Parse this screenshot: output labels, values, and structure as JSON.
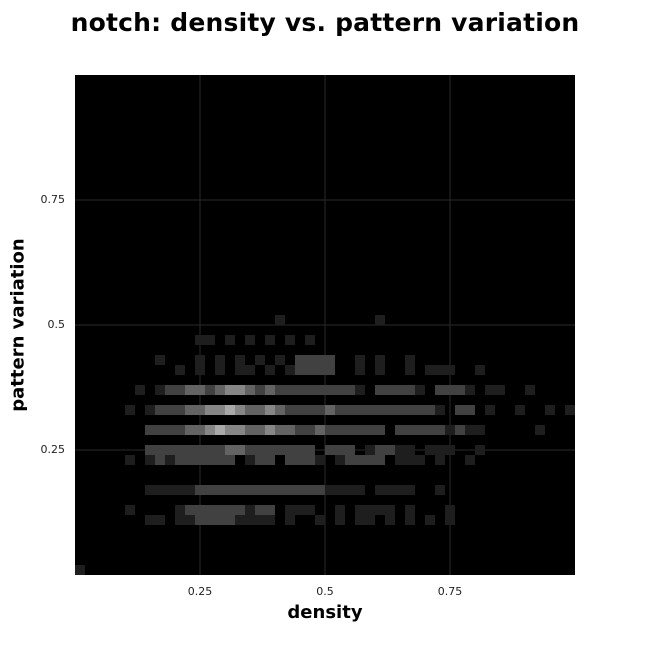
{
  "chart_data": {
    "type": "heatmap",
    "title": "notch: density vs. pattern variation",
    "xlabel": "density",
    "ylabel": "pattern variation",
    "xlim": [
      0,
      1
    ],
    "ylim": [
      0,
      1
    ],
    "bin_size": 0.02,
    "xticks": [
      {
        "value": 0.25,
        "label": "0.25"
      },
      {
        "value": 0.5,
        "label": "0.5"
      },
      {
        "value": 0.75,
        "label": "0.75"
      }
    ],
    "yticks": [
      {
        "value": 0.25,
        "label": "0.25"
      },
      {
        "value": 0.5,
        "label": "0.5"
      },
      {
        "value": 0.75,
        "label": "0.75"
      }
    ],
    "grid": true,
    "colors": {
      "background": "#000000",
      "grid": "#2a2a2a",
      "cell_min": "#1e1e1e",
      "cell_max": "#a8a8a8"
    },
    "cells": [
      [
        0.0,
        0.0,
        2
      ],
      [
        0.4,
        0.5,
        2
      ],
      [
        0.6,
        0.5,
        2
      ],
      [
        0.24,
        0.46,
        2
      ],
      [
        0.26,
        0.46,
        2
      ],
      [
        0.3,
        0.46,
        2
      ],
      [
        0.34,
        0.46,
        2
      ],
      [
        0.38,
        0.46,
        2
      ],
      [
        0.42,
        0.46,
        2
      ],
      [
        0.46,
        0.46,
        2
      ],
      [
        0.16,
        0.42,
        2
      ],
      [
        0.24,
        0.42,
        2
      ],
      [
        0.28,
        0.42,
        2
      ],
      [
        0.32,
        0.42,
        2
      ],
      [
        0.36,
        0.42,
        2
      ],
      [
        0.4,
        0.42,
        2
      ],
      [
        0.44,
        0.42,
        3
      ],
      [
        0.46,
        0.42,
        3
      ],
      [
        0.48,
        0.42,
        3
      ],
      [
        0.5,
        0.42,
        3
      ],
      [
        0.56,
        0.42,
        2
      ],
      [
        0.6,
        0.42,
        2
      ],
      [
        0.66,
        0.42,
        2
      ],
      [
        0.2,
        0.4,
        2
      ],
      [
        0.24,
        0.4,
        2
      ],
      [
        0.28,
        0.4,
        2
      ],
      [
        0.32,
        0.4,
        2
      ],
      [
        0.34,
        0.4,
        2
      ],
      [
        0.38,
        0.4,
        2
      ],
      [
        0.42,
        0.4,
        2
      ],
      [
        0.44,
        0.4,
        3
      ],
      [
        0.46,
        0.4,
        3
      ],
      [
        0.48,
        0.4,
        3
      ],
      [
        0.5,
        0.4,
        3
      ],
      [
        0.56,
        0.4,
        2
      ],
      [
        0.6,
        0.4,
        2
      ],
      [
        0.66,
        0.4,
        2
      ],
      [
        0.7,
        0.4,
        2
      ],
      [
        0.72,
        0.4,
        2
      ],
      [
        0.74,
        0.4,
        2
      ],
      [
        0.8,
        0.4,
        2
      ],
      [
        0.12,
        0.36,
        2
      ],
      [
        0.16,
        0.36,
        2
      ],
      [
        0.18,
        0.36,
        3
      ],
      [
        0.2,
        0.36,
        3
      ],
      [
        0.22,
        0.36,
        4
      ],
      [
        0.24,
        0.36,
        4
      ],
      [
        0.26,
        0.36,
        3
      ],
      [
        0.28,
        0.36,
        4
      ],
      [
        0.3,
        0.36,
        5
      ],
      [
        0.32,
        0.36,
        5
      ],
      [
        0.34,
        0.36,
        4
      ],
      [
        0.36,
        0.36,
        3
      ],
      [
        0.38,
        0.36,
        4
      ],
      [
        0.4,
        0.36,
        3
      ],
      [
        0.42,
        0.36,
        3
      ],
      [
        0.44,
        0.36,
        3
      ],
      [
        0.46,
        0.36,
        3
      ],
      [
        0.48,
        0.36,
        3
      ],
      [
        0.5,
        0.36,
        3
      ],
      [
        0.52,
        0.36,
        3
      ],
      [
        0.54,
        0.36,
        3
      ],
      [
        0.56,
        0.36,
        2
      ],
      [
        0.6,
        0.36,
        3
      ],
      [
        0.62,
        0.36,
        3
      ],
      [
        0.64,
        0.36,
        3
      ],
      [
        0.66,
        0.36,
        3
      ],
      [
        0.68,
        0.36,
        2
      ],
      [
        0.72,
        0.36,
        3
      ],
      [
        0.74,
        0.36,
        3
      ],
      [
        0.76,
        0.36,
        3
      ],
      [
        0.78,
        0.36,
        2
      ],
      [
        0.82,
        0.36,
        2
      ],
      [
        0.84,
        0.36,
        2
      ],
      [
        0.9,
        0.36,
        2
      ],
      [
        0.1,
        0.32,
        2
      ],
      [
        0.14,
        0.32,
        2
      ],
      [
        0.16,
        0.32,
        3
      ],
      [
        0.18,
        0.32,
        3
      ],
      [
        0.2,
        0.32,
        3
      ],
      [
        0.22,
        0.32,
        4
      ],
      [
        0.24,
        0.32,
        4
      ],
      [
        0.26,
        0.32,
        5
      ],
      [
        0.28,
        0.32,
        5
      ],
      [
        0.3,
        0.32,
        6
      ],
      [
        0.32,
        0.32,
        5
      ],
      [
        0.34,
        0.32,
        4
      ],
      [
        0.36,
        0.32,
        4
      ],
      [
        0.38,
        0.32,
        5
      ],
      [
        0.4,
        0.32,
        4
      ],
      [
        0.42,
        0.32,
        3
      ],
      [
        0.44,
        0.32,
        3
      ],
      [
        0.46,
        0.32,
        3
      ],
      [
        0.48,
        0.32,
        3
      ],
      [
        0.5,
        0.32,
        4
      ],
      [
        0.52,
        0.32,
        3
      ],
      [
        0.54,
        0.32,
        3
      ],
      [
        0.56,
        0.32,
        3
      ],
      [
        0.58,
        0.32,
        3
      ],
      [
        0.6,
        0.32,
        3
      ],
      [
        0.62,
        0.32,
        3
      ],
      [
        0.64,
        0.32,
        3
      ],
      [
        0.66,
        0.32,
        3
      ],
      [
        0.68,
        0.32,
        3
      ],
      [
        0.7,
        0.32,
        3
      ],
      [
        0.72,
        0.32,
        2
      ],
      [
        0.76,
        0.32,
        3
      ],
      [
        0.78,
        0.32,
        3
      ],
      [
        0.82,
        0.32,
        2
      ],
      [
        0.88,
        0.32,
        2
      ],
      [
        0.94,
        0.32,
        2
      ],
      [
        0.98,
        0.32,
        2
      ],
      [
        0.14,
        0.28,
        3
      ],
      [
        0.16,
        0.28,
        3
      ],
      [
        0.18,
        0.28,
        3
      ],
      [
        0.2,
        0.28,
        3
      ],
      [
        0.22,
        0.28,
        4
      ],
      [
        0.24,
        0.28,
        4
      ],
      [
        0.26,
        0.28,
        5
      ],
      [
        0.28,
        0.28,
        6
      ],
      [
        0.3,
        0.28,
        5
      ],
      [
        0.32,
        0.28,
        5
      ],
      [
        0.34,
        0.28,
        4
      ],
      [
        0.36,
        0.28,
        4
      ],
      [
        0.38,
        0.28,
        5
      ],
      [
        0.4,
        0.28,
        4
      ],
      [
        0.42,
        0.28,
        4
      ],
      [
        0.44,
        0.28,
        3
      ],
      [
        0.46,
        0.28,
        3
      ],
      [
        0.48,
        0.28,
        4
      ],
      [
        0.5,
        0.28,
        3
      ],
      [
        0.52,
        0.28,
        3
      ],
      [
        0.54,
        0.28,
        3
      ],
      [
        0.56,
        0.28,
        3
      ],
      [
        0.58,
        0.28,
        3
      ],
      [
        0.6,
        0.28,
        3
      ],
      [
        0.64,
        0.28,
        3
      ],
      [
        0.66,
        0.28,
        3
      ],
      [
        0.68,
        0.28,
        3
      ],
      [
        0.7,
        0.28,
        3
      ],
      [
        0.72,
        0.28,
        3
      ],
      [
        0.74,
        0.28,
        2
      ],
      [
        0.76,
        0.28,
        3
      ],
      [
        0.78,
        0.28,
        2
      ],
      [
        0.8,
        0.28,
        2
      ],
      [
        0.92,
        0.28,
        2
      ],
      [
        0.14,
        0.24,
        3
      ],
      [
        0.16,
        0.24,
        3
      ],
      [
        0.18,
        0.24,
        3
      ],
      [
        0.2,
        0.24,
        3
      ],
      [
        0.22,
        0.24,
        3
      ],
      [
        0.24,
        0.24,
        3
      ],
      [
        0.26,
        0.24,
        3
      ],
      [
        0.28,
        0.24,
        3
      ],
      [
        0.3,
        0.24,
        4
      ],
      [
        0.32,
        0.24,
        4
      ],
      [
        0.34,
        0.24,
        3
      ],
      [
        0.36,
        0.24,
        3
      ],
      [
        0.38,
        0.24,
        3
      ],
      [
        0.4,
        0.24,
        3
      ],
      [
        0.42,
        0.24,
        3
      ],
      [
        0.44,
        0.24,
        3
      ],
      [
        0.46,
        0.24,
        3
      ],
      [
        0.5,
        0.24,
        3
      ],
      [
        0.52,
        0.24,
        3
      ],
      [
        0.54,
        0.24,
        3
      ],
      [
        0.58,
        0.24,
        2
      ],
      [
        0.6,
        0.24,
        3
      ],
      [
        0.62,
        0.24,
        3
      ],
      [
        0.64,
        0.24,
        2
      ],
      [
        0.66,
        0.24,
        2
      ],
      [
        0.7,
        0.24,
        2
      ],
      [
        0.72,
        0.24,
        2
      ],
      [
        0.74,
        0.24,
        2
      ],
      [
        0.8,
        0.24,
        2
      ],
      [
        0.1,
        0.22,
        2
      ],
      [
        0.14,
        0.22,
        2
      ],
      [
        0.16,
        0.22,
        3
      ],
      [
        0.18,
        0.22,
        2
      ],
      [
        0.2,
        0.22,
        3
      ],
      [
        0.22,
        0.22,
        3
      ],
      [
        0.24,
        0.22,
        3
      ],
      [
        0.26,
        0.22,
        3
      ],
      [
        0.28,
        0.22,
        3
      ],
      [
        0.3,
        0.22,
        3
      ],
      [
        0.34,
        0.22,
        2
      ],
      [
        0.36,
        0.22,
        3
      ],
      [
        0.38,
        0.22,
        3
      ],
      [
        0.42,
        0.22,
        3
      ],
      [
        0.44,
        0.22,
        3
      ],
      [
        0.46,
        0.22,
        3
      ],
      [
        0.48,
        0.22,
        2
      ],
      [
        0.52,
        0.22,
        2
      ],
      [
        0.54,
        0.22,
        3
      ],
      [
        0.56,
        0.22,
        3
      ],
      [
        0.58,
        0.22,
        3
      ],
      [
        0.6,
        0.22,
        3
      ],
      [
        0.64,
        0.22,
        2
      ],
      [
        0.66,
        0.22,
        2
      ],
      [
        0.68,
        0.22,
        2
      ],
      [
        0.72,
        0.22,
        2
      ],
      [
        0.78,
        0.22,
        2
      ],
      [
        0.14,
        0.16,
        2
      ],
      [
        0.16,
        0.16,
        2
      ],
      [
        0.18,
        0.16,
        2
      ],
      [
        0.2,
        0.16,
        2
      ],
      [
        0.22,
        0.16,
        2
      ],
      [
        0.24,
        0.16,
        3
      ],
      [
        0.26,
        0.16,
        3
      ],
      [
        0.28,
        0.16,
        3
      ],
      [
        0.3,
        0.16,
        3
      ],
      [
        0.32,
        0.16,
        3
      ],
      [
        0.34,
        0.16,
        3
      ],
      [
        0.36,
        0.16,
        3
      ],
      [
        0.38,
        0.16,
        3
      ],
      [
        0.4,
        0.16,
        3
      ],
      [
        0.42,
        0.16,
        3
      ],
      [
        0.44,
        0.16,
        3
      ],
      [
        0.46,
        0.16,
        3
      ],
      [
        0.48,
        0.16,
        3
      ],
      [
        0.5,
        0.16,
        2
      ],
      [
        0.52,
        0.16,
        2
      ],
      [
        0.54,
        0.16,
        2
      ],
      [
        0.56,
        0.16,
        2
      ],
      [
        0.6,
        0.16,
        2
      ],
      [
        0.62,
        0.16,
        2
      ],
      [
        0.64,
        0.16,
        2
      ],
      [
        0.66,
        0.16,
        2
      ],
      [
        0.72,
        0.16,
        2
      ],
      [
        0.1,
        0.12,
        2
      ],
      [
        0.2,
        0.12,
        2
      ],
      [
        0.22,
        0.12,
        3
      ],
      [
        0.24,
        0.12,
        3
      ],
      [
        0.26,
        0.12,
        3
      ],
      [
        0.28,
        0.12,
        3
      ],
      [
        0.3,
        0.12,
        3
      ],
      [
        0.32,
        0.12,
        3
      ],
      [
        0.34,
        0.12,
        2
      ],
      [
        0.36,
        0.12,
        3
      ],
      [
        0.38,
        0.12,
        3
      ],
      [
        0.42,
        0.12,
        2
      ],
      [
        0.44,
        0.12,
        2
      ],
      [
        0.46,
        0.12,
        2
      ],
      [
        0.52,
        0.12,
        2
      ],
      [
        0.56,
        0.12,
        2
      ],
      [
        0.58,
        0.12,
        2
      ],
      [
        0.6,
        0.12,
        2
      ],
      [
        0.62,
        0.12,
        2
      ],
      [
        0.66,
        0.12,
        2
      ],
      [
        0.74,
        0.12,
        2
      ],
      [
        0.14,
        0.1,
        2
      ],
      [
        0.16,
        0.1,
        2
      ],
      [
        0.2,
        0.1,
        2
      ],
      [
        0.22,
        0.1,
        2
      ],
      [
        0.24,
        0.1,
        3
      ],
      [
        0.26,
        0.1,
        3
      ],
      [
        0.28,
        0.1,
        3
      ],
      [
        0.3,
        0.1,
        3
      ],
      [
        0.32,
        0.1,
        2
      ],
      [
        0.34,
        0.1,
        2
      ],
      [
        0.36,
        0.1,
        2
      ],
      [
        0.38,
        0.1,
        2
      ],
      [
        0.42,
        0.1,
        2
      ],
      [
        0.48,
        0.1,
        2
      ],
      [
        0.52,
        0.1,
        2
      ],
      [
        0.56,
        0.1,
        2
      ],
      [
        0.58,
        0.1,
        2
      ],
      [
        0.62,
        0.1,
        2
      ],
      [
        0.66,
        0.1,
        2
      ],
      [
        0.7,
        0.1,
        2
      ],
      [
        0.74,
        0.1,
        2
      ]
    ]
  }
}
